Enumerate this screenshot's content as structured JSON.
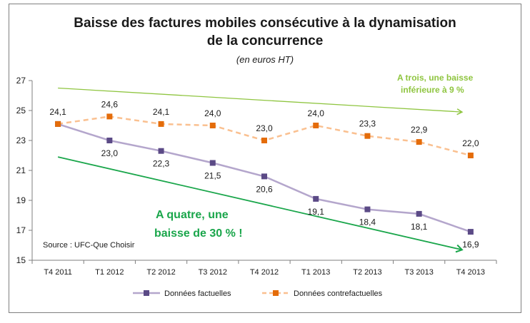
{
  "chart_data": {
    "type": "line",
    "title_line1": "Baisse des factures mobiles consécutive à la dynamisation",
    "title_line2": "de la concurrence",
    "subtitle": "(en euros HT)",
    "categories": [
      "T4 2011",
      "T1 2012",
      "T2 2012",
      "T3 2012",
      "T4 2012",
      "T1 2013",
      "T2 2013",
      "T3 2013",
      "T4 2013"
    ],
    "ylim": [
      15,
      27
    ],
    "yticks": [
      15,
      17,
      19,
      21,
      23,
      25,
      27
    ],
    "grid": false,
    "legend_placement": "bottom",
    "series": [
      {
        "name": "Données factuelles",
        "values": [
          24.1,
          23.0,
          22.3,
          21.5,
          20.6,
          19.1,
          18.4,
          18.1,
          16.9
        ],
        "labels": [
          "",
          "23,0",
          "22,3",
          "21,5",
          "20,6",
          "19,1",
          "18,4",
          "18,1",
          "16,9"
        ],
        "color": "#b4a6cc",
        "marker_color": "#5b4a86",
        "dashed": false,
        "label_position": "below"
      },
      {
        "name": "Données contrefactuelles",
        "values": [
          24.1,
          24.6,
          24.1,
          24.0,
          23.0,
          24.0,
          23.3,
          22.9,
          22.0
        ],
        "labels": [
          "24,1",
          "24,6",
          "24,1",
          "24,0",
          "23,0",
          "24,0",
          "23,3",
          "22,9",
          "22,0"
        ],
        "color": "#fac090",
        "marker_color": "#e46c0a",
        "dashed": true,
        "label_position": "above"
      }
    ],
    "annotations": {
      "trois_line1": "A trois, une baisse",
      "trois_line2": "inférieure à 9 %",
      "quatre_line1": "A quatre, une",
      "quatre_line2": "baisse de 30 % !",
      "source": "Source : UFC-Que Choisir"
    },
    "trend_arrows": [
      {
        "name": "trend-arrow-trois",
        "color": "#8fc540",
        "from": {
          "x": "T4 2011",
          "y": 26.5
        },
        "to": {
          "x": "T4 2013",
          "y": 24.9
        }
      },
      {
        "name": "trend-arrow-quatre",
        "color": "#1aa64b",
        "from": {
          "x": "T4 2011",
          "y": 21.9
        },
        "to": {
          "x": "T4 2013",
          "y": 15.7
        }
      }
    ]
  }
}
